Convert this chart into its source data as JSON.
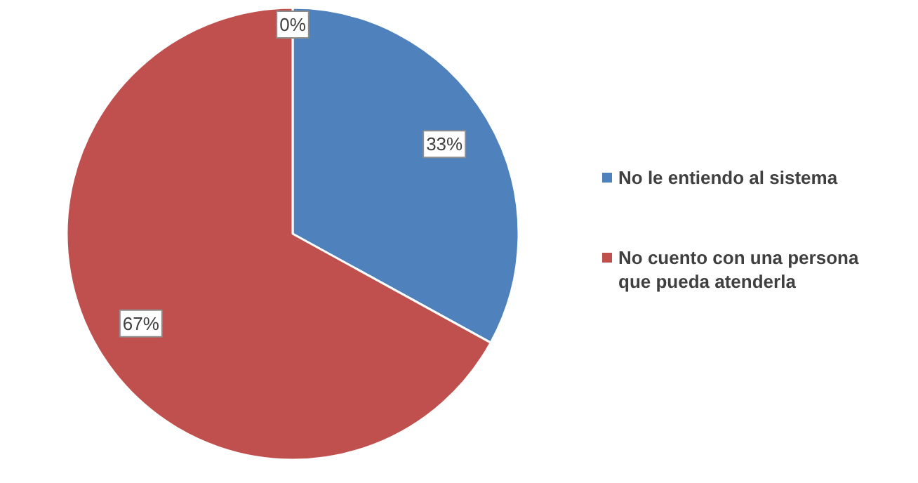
{
  "chart_data": {
    "type": "pie",
    "categories": [
      "No le entiendo al sistema",
      "No cuento con una persona que pueda atenderla"
    ],
    "values": [
      33,
      67
    ],
    "colors": [
      "#4f81bd",
      "#c0504d"
    ],
    "value_labels": [
      "33%",
      "67%"
    ],
    "legend": "right",
    "annotations": [
      "0%"
    ]
  }
}
